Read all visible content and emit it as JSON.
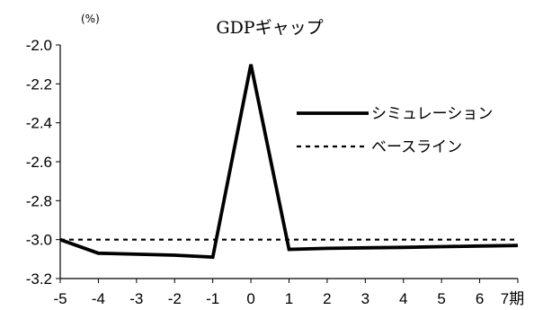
{
  "chart_data": {
    "type": "line",
    "title": "GDPギャップ",
    "unit_label": "(%)",
    "x": [
      -5,
      -4,
      -3,
      -2,
      -1,
      0,
      1,
      2,
      3,
      4,
      5,
      6,
      7
    ],
    "x_tick_labels": [
      "-5",
      "-4",
      "-3",
      "-2",
      "-1",
      "0",
      "1",
      "2",
      "3",
      "4",
      "5",
      "6",
      "7期"
    ],
    "xlim": [
      -5,
      7
    ],
    "ylim": [
      -3.2,
      -2.0
    ],
    "y_ticks": [
      -2.0,
      -2.2,
      -2.4,
      -2.6,
      -2.8,
      -3.0,
      -3.2
    ],
    "y_tick_labels": [
      "-2.0",
      "-2.2",
      "-2.4",
      "-2.6",
      "-2.8",
      "-3.0",
      "-3.2"
    ],
    "grid": false,
    "legend_position": "right",
    "series": [
      {
        "name": "シミュレーション",
        "style": "solid",
        "color": "#000000",
        "values": [
          -3.0,
          -3.07,
          -3.075,
          -3.08,
          -3.09,
          -2.1,
          -3.05,
          -3.045,
          -3.042,
          -3.04,
          -3.036,
          -3.033,
          -3.03
        ]
      },
      {
        "name": "ベースライン",
        "style": "dotted",
        "color": "#000000",
        "values": [
          -3.0,
          -3.0,
          -3.0,
          -3.0,
          -3.0,
          -3.0,
          -3.0,
          -3.0,
          -3.0,
          -3.0,
          -3.0,
          -3.0,
          -3.0
        ]
      }
    ]
  }
}
